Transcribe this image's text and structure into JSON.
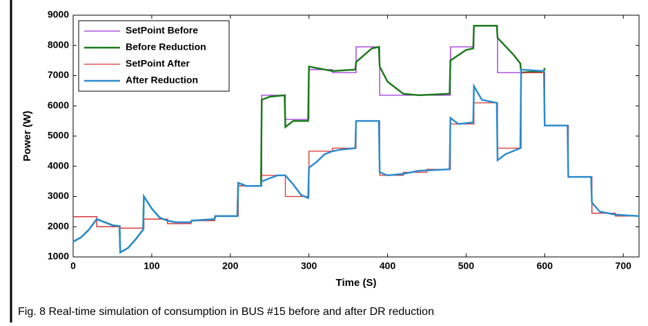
{
  "chart_data": {
    "type": "line",
    "xlabel": "Time (S)",
    "ylabel": "Power (W)",
    "caption": "Fig. 8   Real-time simulation of consumption in BUS #15 before and after DR reduction",
    "xlim": [
      0,
      720
    ],
    "xticks": [
      0,
      100,
      200,
      300,
      400,
      500,
      600,
      700
    ],
    "ylim": [
      1000,
      9000
    ],
    "yticks": [
      1000,
      2000,
      3000,
      4000,
      5000,
      6000,
      7000,
      8000,
      9000
    ],
    "legend": "upper left",
    "series": [
      {
        "name": "SetPoint Before",
        "color": "#9b30d9",
        "x": [
          0,
          30,
          30,
          60,
          60,
          90,
          90,
          120,
          120,
          150,
          150,
          180,
          180,
          210,
          210,
          240,
          240,
          270,
          270,
          300,
          300,
          330,
          330,
          360,
          360,
          390,
          390,
          420,
          420,
          450,
          450,
          480,
          480,
          510,
          510,
          540,
          540,
          570,
          570,
          600,
          600,
          630,
          630,
          660,
          660,
          690,
          690,
          720
        ],
        "values": [
          2330,
          2330,
          2000,
          2000,
          1950,
          1950,
          2250,
          2250,
          2100,
          2100,
          2200,
          2200,
          2350,
          2350,
          3350,
          3350,
          6350,
          6350,
          5550,
          5550,
          7200,
          7200,
          7100,
          7100,
          7950,
          7950,
          6350,
          6350,
          6350,
          6350,
          6350,
          6350,
          7950,
          7950,
          8650,
          8650,
          7100,
          7100,
          7100,
          7100,
          5350,
          5350,
          3650,
          3650,
          2450,
          2450,
          2350,
          2350
        ]
      },
      {
        "name": "Before Reduction",
        "color": "#1a7a1a",
        "x": [
          0,
          10,
          20,
          30,
          40,
          50,
          59,
          60,
          70,
          80,
          89,
          90,
          100,
          110,
          120,
          130,
          150,
          151,
          180,
          181,
          209,
          210,
          220,
          239,
          240,
          250,
          269,
          270,
          280,
          299,
          300,
          330,
          359,
          360,
          380,
          389,
          390,
          400,
          420,
          440,
          479,
          480,
          500,
          509,
          510,
          539,
          540,
          560,
          569,
          570,
          599,
          600
        ],
        "values": [
          1500,
          1650,
          1900,
          2250,
          2150,
          2050,
          2020,
          1150,
          1300,
          1600,
          1900,
          3000,
          2600,
          2300,
          2200,
          2150,
          2150,
          2200,
          2250,
          2350,
          2350,
          3450,
          3350,
          3350,
          6200,
          6300,
          6350,
          5300,
          5500,
          5500,
          7300,
          7150,
          7200,
          7450,
          7900,
          7950,
          7300,
          6800,
          6400,
          6350,
          6400,
          7500,
          7850,
          7900,
          8650,
          8650,
          8250,
          7700,
          7400,
          7100,
          7150,
          7250
        ]
      },
      {
        "name": "SetPoint After",
        "color": "#d9302a",
        "x": [
          0,
          30,
          30,
          60,
          60,
          90,
          90,
          120,
          120,
          150,
          150,
          180,
          180,
          210,
          210,
          240,
          240,
          270,
          270,
          300,
          300,
          330,
          330,
          360,
          360,
          390,
          390,
          420,
          420,
          450,
          450,
          480,
          480,
          510,
          510,
          540,
          540,
          570,
          570,
          600,
          600,
          630,
          630,
          660,
          660,
          690,
          690,
          720
        ],
        "values": [
          2330,
          2330,
          2000,
          2000,
          1950,
          1950,
          2250,
          2250,
          2100,
          2100,
          2200,
          2200,
          2350,
          2350,
          3350,
          3350,
          3700,
          3700,
          3000,
          3000,
          4500,
          4500,
          4600,
          4600,
          5500,
          5500,
          3700,
          3700,
          3800,
          3800,
          3900,
          3900,
          5400,
          5400,
          6100,
          6100,
          4600,
          4600,
          7100,
          7100,
          5350,
          5350,
          3650,
          3650,
          2450,
          2450,
          2350,
          2350
        ]
      },
      {
        "name": "After Reduction",
        "color": "#2b8ccc",
        "x": [
          0,
          10,
          20,
          30,
          40,
          50,
          59,
          60,
          70,
          80,
          89,
          90,
          100,
          110,
          120,
          130,
          150,
          151,
          180,
          181,
          209,
          210,
          220,
          239,
          240,
          260,
          270,
          280,
          290,
          299,
          300,
          310,
          320,
          330,
          340,
          359,
          360,
          389,
          390,
          400,
          420,
          440,
          479,
          480,
          490,
          509,
          510,
          520,
          539,
          540,
          550,
          569,
          570,
          599,
          600,
          629,
          630,
          659,
          660,
          670,
          690,
          720
        ],
        "values": [
          1500,
          1650,
          1900,
          2250,
          2150,
          2050,
          2020,
          1150,
          1300,
          1600,
          1900,
          3000,
          2600,
          2300,
          2200,
          2150,
          2150,
          2200,
          2250,
          2350,
          2350,
          3450,
          3350,
          3350,
          3500,
          3700,
          3700,
          3400,
          3050,
          2950,
          3950,
          4150,
          4400,
          4500,
          4550,
          4600,
          5500,
          5500,
          3800,
          3700,
          3750,
          3850,
          3900,
          5600,
          5400,
          5450,
          6650,
          6200,
          6100,
          4200,
          4400,
          4600,
          7200,
          7150,
          5350,
          5350,
          3650,
          3650,
          2800,
          2500,
          2400,
          2350
        ]
      }
    ]
  }
}
